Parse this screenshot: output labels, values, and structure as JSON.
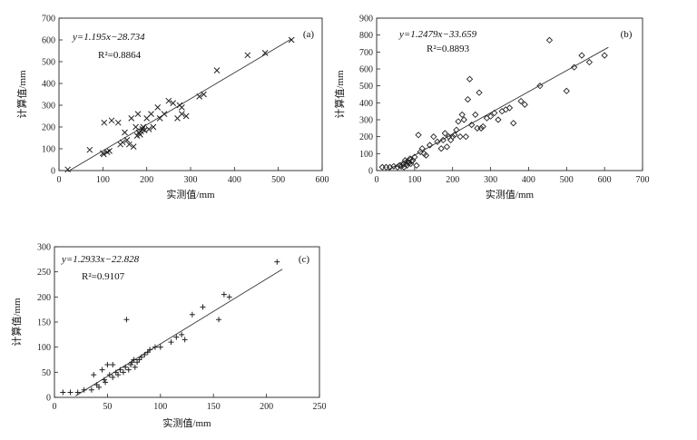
{
  "chart_data": [
    {
      "type": "scatter",
      "panel_label": "(a)",
      "xlabel": "实测值/mm",
      "ylabel": "计算值/mm",
      "xlim": [
        0,
        600
      ],
      "ylim": [
        0,
        700
      ],
      "xticks": [
        0,
        100,
        200,
        300,
        400,
        500,
        600
      ],
      "yticks": [
        0,
        100,
        200,
        300,
        400,
        500,
        600,
        700
      ],
      "marker": "x",
      "equation": "y=1.195x−28.734",
      "r2": "R²=0.8864",
      "fit": {
        "slope": 1.195,
        "intercept": -28.734,
        "x_range": [
          20,
          530
        ]
      },
      "points": [
        [
          20,
          5
        ],
        [
          70,
          95
        ],
        [
          100,
          80
        ],
        [
          102,
          75
        ],
        [
          103,
          220
        ],
        [
          110,
          85
        ],
        [
          115,
          90
        ],
        [
          120,
          230
        ],
        [
          135,
          220
        ],
        [
          140,
          120
        ],
        [
          145,
          130
        ],
        [
          150,
          175
        ],
        [
          155,
          140
        ],
        [
          160,
          120
        ],
        [
          165,
          240
        ],
        [
          170,
          110
        ],
        [
          175,
          200
        ],
        [
          178,
          160
        ],
        [
          180,
          260
        ],
        [
          182,
          175
        ],
        [
          185,
          165
        ],
        [
          187,
          180
        ],
        [
          190,
          190
        ],
        [
          192,
          200
        ],
        [
          195,
          185
        ],
        [
          200,
          240
        ],
        [
          205,
          190
        ],
        [
          210,
          260
        ],
        [
          215,
          200
        ],
        [
          225,
          290
        ],
        [
          230,
          240
        ],
        [
          240,
          260
        ],
        [
          250,
          320
        ],
        [
          260,
          310
        ],
        [
          270,
          240
        ],
        [
          275,
          300
        ],
        [
          280,
          260
        ],
        [
          280,
          290
        ],
        [
          290,
          250
        ],
        [
          320,
          340
        ],
        [
          330,
          350
        ],
        [
          360,
          460
        ],
        [
          430,
          530
        ],
        [
          470,
          540
        ],
        [
          530,
          600
        ]
      ]
    },
    {
      "type": "scatter",
      "panel_label": "(b)",
      "xlabel": "实测值/mm",
      "ylabel": "计算值/mm",
      "xlim": [
        0,
        700
      ],
      "ylim": [
        0,
        900
      ],
      "xticks": [
        0,
        100,
        200,
        300,
        400,
        500,
        600,
        700
      ],
      "yticks": [
        0,
        100,
        200,
        300,
        400,
        500,
        600,
        700,
        800,
        900
      ],
      "marker": "diamond",
      "equation": "y=1.2479x−33.659",
      "r2": "R²=0.8893",
      "fit": {
        "slope": 1.2479,
        "intercept": -33.659,
        "x_range": [
          30,
          610
        ]
      },
      "points": [
        [
          15,
          20
        ],
        [
          25,
          20
        ],
        [
          35,
          20
        ],
        [
          45,
          25
        ],
        [
          55,
          20
        ],
        [
          60,
          30
        ],
        [
          65,
          25
        ],
        [
          70,
          35
        ],
        [
          72,
          20
        ],
        [
          75,
          60
        ],
        [
          78,
          40
        ],
        [
          80,
          30
        ],
        [
          82,
          50
        ],
        [
          85,
          45
        ],
        [
          88,
          70
        ],
        [
          90,
          40
        ],
        [
          92,
          55
        ],
        [
          95,
          60
        ],
        [
          100,
          80
        ],
        [
          105,
          30
        ],
        [
          110,
          210
        ],
        [
          115,
          110
        ],
        [
          120,
          130
        ],
        [
          125,
          100
        ],
        [
          130,
          90
        ],
        [
          140,
          150
        ],
        [
          150,
          200
        ],
        [
          160,
          170
        ],
        [
          170,
          130
        ],
        [
          175,
          180
        ],
        [
          180,
          220
        ],
        [
          185,
          140
        ],
        [
          190,
          200
        ],
        [
          195,
          180
        ],
        [
          200,
          200
        ],
        [
          205,
          210
        ],
        [
          210,
          240
        ],
        [
          215,
          290
        ],
        [
          220,
          200
        ],
        [
          225,
          330
        ],
        [
          230,
          300
        ],
        [
          235,
          200
        ],
        [
          240,
          420
        ],
        [
          245,
          540
        ],
        [
          250,
          270
        ],
        [
          260,
          330
        ],
        [
          265,
          250
        ],
        [
          270,
          460
        ],
        [
          275,
          250
        ],
        [
          280,
          260
        ],
        [
          290,
          310
        ],
        [
          300,
          320
        ],
        [
          310,
          340
        ],
        [
          320,
          300
        ],
        [
          330,
          350
        ],
        [
          340,
          360
        ],
        [
          350,
          370
        ],
        [
          360,
          280
        ],
        [
          380,
          410
        ],
        [
          390,
          390
        ],
        [
          430,
          500
        ],
        [
          455,
          770
        ],
        [
          500,
          470
        ],
        [
          520,
          610
        ],
        [
          540,
          680
        ],
        [
          560,
          640
        ],
        [
          600,
          680
        ]
      ]
    },
    {
      "type": "scatter",
      "panel_label": "(c)",
      "xlabel": "实测值/mm",
      "ylabel": "计算值/mm",
      "xlim": [
        0,
        250
      ],
      "ylim": [
        0,
        300
      ],
      "xticks": [
        0,
        50,
        100,
        150,
        200,
        250
      ],
      "yticks": [
        0,
        50,
        100,
        150,
        200,
        250,
        300
      ],
      "marker": "+",
      "equation": "y=1.2933x−22.828",
      "r2": "R²=0.9107",
      "fit": {
        "slope": 1.2933,
        "intercept": -22.828,
        "x_range": [
          20,
          215
        ]
      },
      "points": [
        [
          8,
          10
        ],
        [
          15,
          10
        ],
        [
          22,
          10
        ],
        [
          28,
          15
        ],
        [
          35,
          15
        ],
        [
          37,
          45
        ],
        [
          40,
          25
        ],
        [
          42,
          20
        ],
        [
          45,
          55
        ],
        [
          47,
          35
        ],
        [
          48,
          30
        ],
        [
          50,
          65
        ],
        [
          52,
          45
        ],
        [
          55,
          40
        ],
        [
          55,
          65
        ],
        [
          58,
          50
        ],
        [
          60,
          45
        ],
        [
          62,
          55
        ],
        [
          65,
          50
        ],
        [
          67,
          60
        ],
        [
          68,
          155
        ],
        [
          70,
          55
        ],
        [
          72,
          65
        ],
        [
          73,
          70
        ],
        [
          75,
          75
        ],
        [
          76,
          60
        ],
        [
          78,
          70
        ],
        [
          80,
          75
        ],
        [
          82,
          80
        ],
        [
          85,
          85
        ],
        [
          88,
          90
        ],
        [
          90,
          95
        ],
        [
          95,
          100
        ],
        [
          100,
          100
        ],
        [
          110,
          110
        ],
        [
          115,
          120
        ],
        [
          120,
          125
        ],
        [
          123,
          115
        ],
        [
          130,
          165
        ],
        [
          140,
          180
        ],
        [
          155,
          155
        ],
        [
          160,
          205
        ],
        [
          165,
          200
        ],
        [
          210,
          270
        ]
      ]
    }
  ]
}
